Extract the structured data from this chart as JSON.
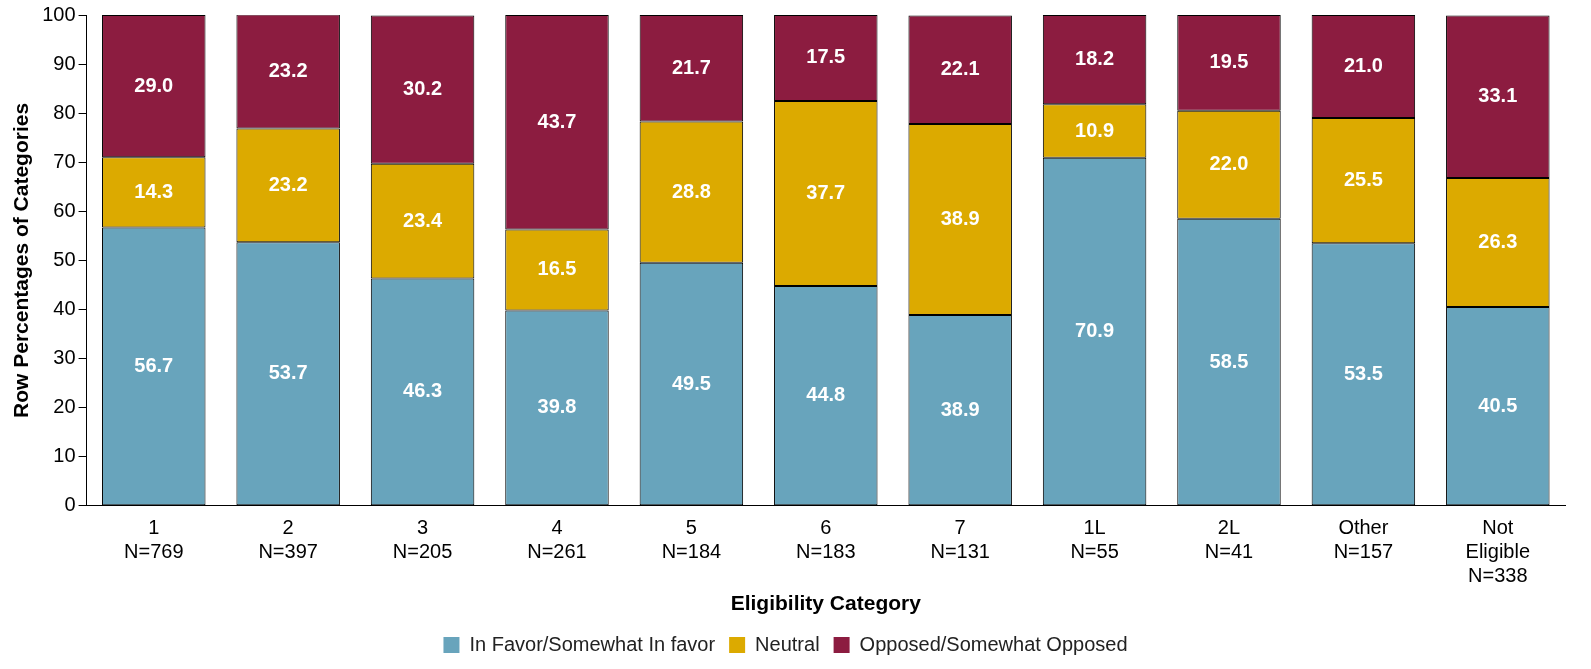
{
  "chart_data": {
    "type": "bar",
    "stacked": true,
    "xlabel": "Eligibility Category",
    "ylabel": "Row Percentages of Categories",
    "categories": [
      "1\nN=769",
      "2\nN=397",
      "3\nN=205",
      "4\nN=261",
      "5\nN=184",
      "6\nN=183",
      "7\nN=131",
      "1L\nN=55",
      "2L\nN=41",
      "Other\nN=157",
      "Not\nEligible\nN=338"
    ],
    "series": [
      {
        "name": "In Favor/Somewhat In favor",
        "color": "#68a4bc",
        "values": [
          56.7,
          53.7,
          46.3,
          39.8,
          49.5,
          44.8,
          38.9,
          70.9,
          58.5,
          53.5,
          40.5
        ],
        "value_labels": [
          "56.7",
          "53.7",
          "46.3",
          "39.8",
          "49.5",
          "44.8",
          "38.9",
          "70.9",
          "58.5",
          "53.5",
          "40.5"
        ]
      },
      {
        "name": "Neutral",
        "color": "#dcaa00",
        "values": [
          14.3,
          23.2,
          23.4,
          16.5,
          28.8,
          37.7,
          38.9,
          10.9,
          22.0,
          25.5,
          26.3
        ],
        "value_labels": [
          "14.3",
          "23.2",
          "23.4",
          "16.5",
          "28.8",
          "37.7",
          "38.9",
          "10.9",
          "22.0",
          "25.5",
          "26.3"
        ]
      },
      {
        "name": "Opposed/Somewhat Opposed",
        "color": "#8c1c40",
        "values": [
          29.0,
          23.2,
          30.2,
          43.7,
          21.7,
          17.5,
          22.1,
          18.2,
          19.5,
          21.0,
          33.1
        ],
        "value_labels": [
          "29.0",
          "23.2",
          "30.2",
          "43.7",
          "21.7",
          "17.5",
          "22.1",
          "18.2",
          "19.5",
          "21.0",
          "33.1"
        ]
      }
    ],
    "ylim": [
      0,
      100
    ],
    "yticks": [
      0,
      10,
      20,
      30,
      40,
      50,
      60,
      70,
      80,
      90,
      100
    ],
    "grid": false,
    "legend": "bottom"
  }
}
